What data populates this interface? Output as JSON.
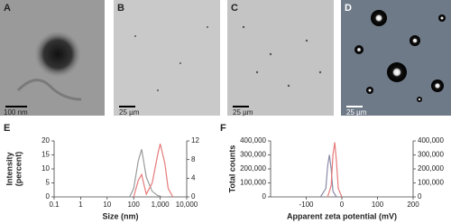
{
  "panels": [
    {
      "label": "A",
      "scale_bar": "100 nm"
    },
    {
      "label": "B",
      "scale_bar": "25 µm"
    },
    {
      "label": "C",
      "scale_bar": "25 µm"
    },
    {
      "label": "D",
      "scale_bar": "25 µm"
    }
  ],
  "chart_data": [
    {
      "type": "line",
      "panel_label": "E",
      "xlabel": "Size (nm)",
      "ylabel": [
        "Intensity",
        "(percent)"
      ],
      "xscale": "log",
      "xlim": [
        0.1,
        10000
      ],
      "xticks": [
        0.1,
        1,
        10,
        100,
        {
          "value": 1000,
          "label": "1,000"
        },
        {
          "value": 10000,
          "label": "10,000"
        }
      ],
      "ylim": [
        0,
        20
      ],
      "yticks": [
        0,
        5,
        10,
        15,
        20
      ],
      "y2lim": [
        0,
        12
      ],
      "y2ticks": [
        0,
        4,
        8,
        12
      ],
      "series": [
        {
          "name": "gray",
          "color": "#9a9a9a",
          "x": [
            70,
            100,
            150,
            200,
            300,
            500,
            800,
            1200,
            2000
          ],
          "values": [
            0,
            3,
            13,
            17,
            7,
            2,
            0.5,
            0,
            0
          ]
        },
        {
          "name": "red",
          "color": "#e67a7a",
          "x": [
            100,
            150,
            200,
            250,
            300,
            500,
            800,
            1000,
            1500,
            2000,
            3000
          ],
          "values": [
            0,
            6,
            8,
            4,
            1,
            5,
            15,
            19,
            12,
            3,
            0
          ]
        }
      ]
    },
    {
      "type": "line",
      "panel_label": "F",
      "xlabel": "Apparent zeta potential (mV)",
      "ylabel": [
        "Total counts"
      ],
      "xscale": "linear",
      "xlim": [
        -200,
        200
      ],
      "xticks": [
        -100,
        0,
        100,
        200
      ],
      "ylim": [
        0,
        400000
      ],
      "yticks": [
        0,
        {
          "value": 100000,
          "label": "100,000"
        },
        {
          "value": 200000,
          "label": "200,000"
        },
        {
          "value": 300000,
          "label": "300,000"
        },
        {
          "value": 400000,
          "label": "400,000"
        }
      ],
      "y2lim": [
        0,
        400000
      ],
      "y2ticks": [
        0,
        {
          "value": 100000,
          "label": "100,000"
        },
        {
          "value": 200000,
          "label": "200,000"
        },
        {
          "value": 300000,
          "label": "300,000"
        },
        {
          "value": 400000,
          "label": "400,000"
        }
      ],
      "series": [
        {
          "name": "gray",
          "color": "#8a8aa8",
          "x": [
            -60,
            -45,
            -40,
            -35,
            -30,
            -25,
            -15
          ],
          "values": [
            0,
            60000,
            220000,
            300000,
            200000,
            40000,
            0
          ]
        },
        {
          "name": "red",
          "color": "#e67a7a",
          "x": [
            -40,
            -30,
            -25,
            -20,
            -15,
            -10,
            0
          ],
          "values": [
            0,
            80000,
            300000,
            390000,
            250000,
            60000,
            0
          ]
        }
      ]
    }
  ]
}
